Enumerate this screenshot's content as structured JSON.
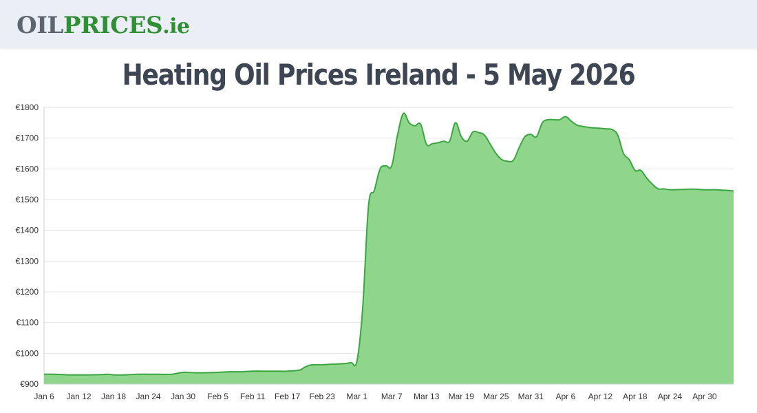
{
  "header": {
    "logo_oil": "OIL",
    "logo_prices": "PRICES",
    "logo_tld": ".ie"
  },
  "title": "Heating Oil Prices Ireland - 5 May 2026",
  "colors": {
    "fill": "#90d58c",
    "line": "#3aa63f",
    "grid": "#e6e6e6"
  },
  "chart_data": {
    "type": "area",
    "title": "Heating Oil Prices Ireland - 5 May 2026",
    "xlabel": "",
    "ylabel": "",
    "ylim": [
      900,
      1800
    ],
    "grid": true,
    "legend": "none",
    "y_ticks": [
      "€900",
      "€1000",
      "€1100",
      "€1200",
      "€1300",
      "€1400",
      "€1500",
      "€1600",
      "€1700",
      "€1800"
    ],
    "y_tick_values": [
      900,
      1000,
      1100,
      1200,
      1300,
      1400,
      1500,
      1600,
      1700,
      1800
    ],
    "x_ticks": [
      "Jan 6",
      "Jan 12",
      "Jan 18",
      "Jan 24",
      "Jan 30",
      "Feb 5",
      "Feb 11",
      "Feb 17",
      "Feb 23",
      "Mar 1",
      "Mar 7",
      "Mar 13",
      "Mar 19",
      "Mar 25",
      "Mar 31",
      "Apr 6",
      "Apr 12",
      "Apr 18",
      "Apr 24",
      "Apr 30"
    ],
    "x_start": "Jan 6",
    "x_end": "May 5",
    "x": [
      "Jan 6",
      "Jan 8",
      "Jan 10",
      "Jan 12",
      "Jan 14",
      "Jan 16",
      "Jan 17",
      "Jan 18",
      "Jan 20",
      "Jan 22",
      "Jan 24",
      "Jan 26",
      "Jan 28",
      "Jan 30",
      "Feb 1",
      "Feb 3",
      "Feb 5",
      "Feb 7",
      "Feb 9",
      "Feb 11",
      "Feb 13",
      "Feb 15",
      "Feb 17",
      "Feb 19",
      "Feb 20",
      "Feb 21",
      "Feb 22",
      "Feb 23",
      "Feb 25",
      "Feb 27",
      "Feb 28",
      "Mar 1",
      "Mar 2",
      "Mar 3",
      "Mar 4",
      "Mar 5",
      "Mar 6",
      "Mar 7",
      "Mar 8",
      "Mar 9",
      "Mar 10",
      "Mar 11",
      "Mar 12",
      "Mar 13",
      "Mar 14",
      "Mar 15",
      "Mar 16",
      "Mar 17",
      "Mar 18",
      "Mar 19",
      "Mar 20",
      "Mar 21",
      "Mar 22",
      "Mar 23",
      "Mar 24",
      "Mar 25",
      "Mar 26",
      "Mar 27",
      "Mar 28",
      "Mar 29",
      "Mar 30",
      "Mar 31",
      "Apr 1",
      "Apr 2",
      "Apr 3",
      "Apr 4",
      "Apr 5",
      "Apr 6",
      "Apr 7",
      "Apr 8",
      "Apr 9",
      "Apr 10",
      "Apr 11",
      "Apr 12",
      "Apr 13",
      "Apr 14",
      "Apr 15",
      "Apr 16",
      "Apr 17",
      "Apr 18",
      "Apr 19",
      "Apr 20",
      "Apr 21",
      "Apr 22",
      "Apr 23",
      "Apr 24",
      "Apr 26",
      "Apr 28",
      "Apr 30",
      "May 2",
      "May 4",
      "May 5"
    ],
    "series": [
      {
        "values": [
          932,
          932,
          930,
          930,
          930,
          931,
          932,
          930,
          930,
          932,
          932,
          932,
          932,
          938,
          937,
          937,
          938,
          940,
          940,
          942,
          942,
          942,
          942,
          945,
          955,
          962,
          963,
          963,
          965,
          967,
          970,
          975,
          1150,
          1480,
          1530,
          1600,
          1610,
          1610,
          1710,
          1780,
          1750,
          1740,
          1745,
          1680,
          1682,
          1685,
          1690,
          1690,
          1750,
          1705,
          1690,
          1720,
          1718,
          1710,
          1680,
          1650,
          1630,
          1625,
          1628,
          1670,
          1705,
          1712,
          1705,
          1750,
          1760,
          1760,
          1760,
          1770,
          1755,
          1742,
          1738,
          1735,
          1733,
          1732,
          1730,
          1728,
          1710,
          1650,
          1630,
          1595,
          1595,
          1570,
          1550,
          1535,
          1535,
          1532,
          1533,
          1534,
          1532,
          1532,
          1530,
          1528
        ]
      }
    ]
  }
}
